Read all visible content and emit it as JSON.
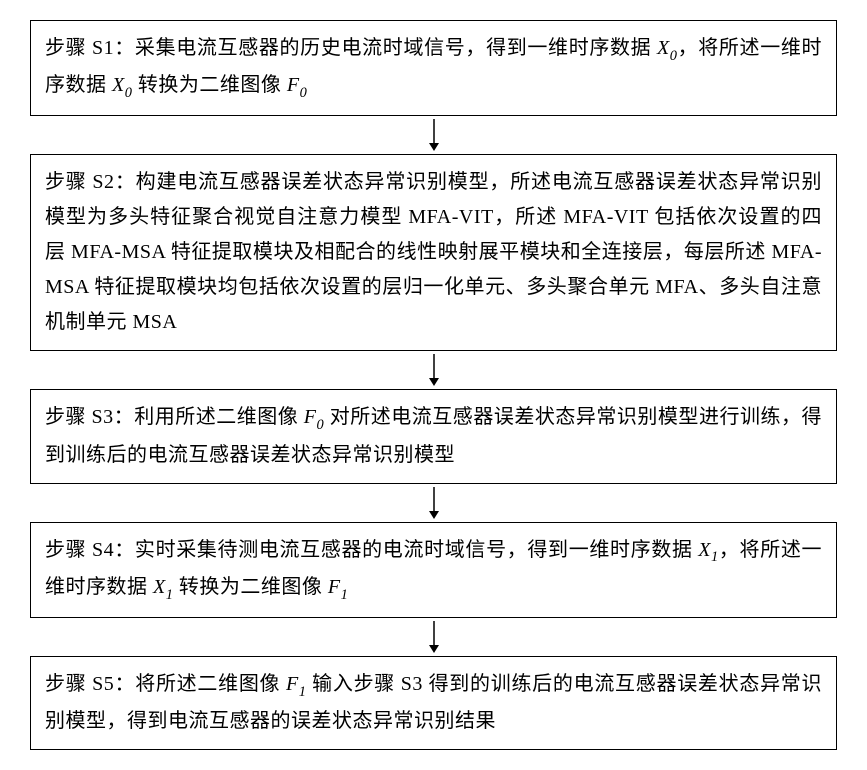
{
  "diagram": {
    "type": "flowchart",
    "direction": "vertical",
    "background_color": "#ffffff",
    "box_border_color": "#000000",
    "box_border_width": 1.5,
    "text_color": "#000000",
    "font_family": "SimSun",
    "font_size_pt": 15,
    "line_height": 1.75,
    "arrow_color": "#000000",
    "steps": [
      {
        "id": "S1",
        "label": "步骤 S1：",
        "body_parts": [
          {
            "t": "采集电流互感器的历史电流时域信号，得到一维时序数据 "
          },
          {
            "t": "X",
            "style": "italic"
          },
          {
            "t": "0",
            "style": "sub"
          },
          {
            "t": "，将所述一维时序数据 "
          },
          {
            "t": "X",
            "style": "italic"
          },
          {
            "t": "0",
            "style": "sub"
          },
          {
            "t": " 转换为二维图像 "
          },
          {
            "t": "F",
            "style": "italic"
          },
          {
            "t": "0",
            "style": "sub"
          }
        ]
      },
      {
        "id": "S2",
        "label": "步骤 S2：",
        "body_parts": [
          {
            "t": "构建电流互感器误差状态异常识别模型，所述电流互感器误差状态异常识别模型为多头特征聚合视觉自注意力模型 MFA-VIT，所述 MFA-VIT 包括依次设置的四层 MFA-MSA 特征提取模块及相配合的线性映射展平模块和全连接层，每层所述 MFA-MSA 特征提取模块均包括依次设置的层归一化单元、多头聚合单元 MFA、多头自注意机制单元 MSA"
          }
        ]
      },
      {
        "id": "S3",
        "label": "步骤 S3：",
        "body_parts": [
          {
            "t": "利用所述二维图像 "
          },
          {
            "t": "F",
            "style": "italic"
          },
          {
            "t": "0",
            "style": "sub"
          },
          {
            "t": " 对所述电流互感器误差状态异常识别模型进行训练，得到训练后的电流互感器误差状态异常识别模型"
          }
        ]
      },
      {
        "id": "S4",
        "label": "步骤 S4：",
        "body_parts": [
          {
            "t": "实时采集待测电流互感器的电流时域信号，得到一维时序数据 "
          },
          {
            "t": "X",
            "style": "italic"
          },
          {
            "t": "1",
            "style": "sub"
          },
          {
            "t": "，将所述一维时序数据 "
          },
          {
            "t": "X",
            "style": "italic"
          },
          {
            "t": "1",
            "style": "sub"
          },
          {
            "t": " 转换为二维图像 "
          },
          {
            "t": "F",
            "style": "italic"
          },
          {
            "t": "1",
            "style": "sub"
          }
        ]
      },
      {
        "id": "S5",
        "label": "步骤 S5：",
        "body_parts": [
          {
            "t": "将所述二维图像 "
          },
          {
            "t": "F",
            "style": "italic"
          },
          {
            "t": "1",
            "style": "sub"
          },
          {
            "t": " 输入步骤 S3 得到的训练后的电流互感器误差状态异常识别模型，得到电流互感器的误差状态异常识别结果"
          }
        ]
      }
    ]
  }
}
